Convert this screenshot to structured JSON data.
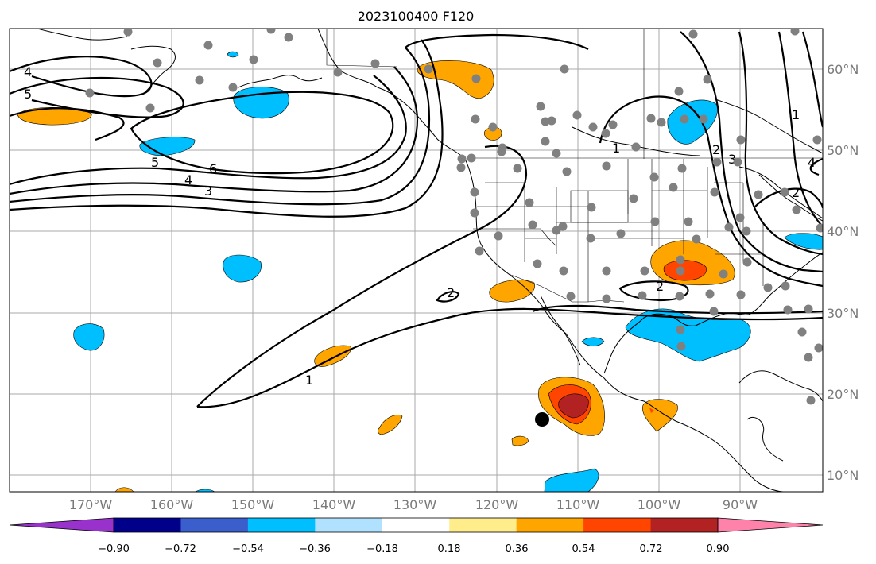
{
  "title": "2023100400 F120",
  "lon_ticks": [
    "170°W",
    "160°W",
    "150°W",
    "140°W",
    "130°W",
    "120°W",
    "110°W",
    "100°W",
    "90°W"
  ],
  "lat_ticks": [
    "60°N",
    "50°N",
    "40°N",
    "30°N",
    "20°N",
    "10°N"
  ],
  "colorbar": {
    "colors": [
      "#9932cc",
      "#00008b",
      "#3a5fcd",
      "#00bfff",
      "#b0e2ff",
      "#ffffff",
      "#ffec8b",
      "#ffa500",
      "#ff4500",
      "#b22222",
      "#ff82ab"
    ],
    "tick_labels": [
      "−0.90",
      "−0.72",
      "−0.54",
      "−0.36",
      "−0.18",
      "0.18",
      "0.36",
      "0.54",
      "0.72",
      "0.90"
    ]
  },
  "contour_labels": [
    "4",
    "5",
    "6",
    "5",
    "4",
    "3",
    "2",
    "1",
    "1",
    "2",
    "2",
    "3",
    "4",
    "1",
    "2"
  ],
  "station_marker_color": "#808080",
  "storm_marker_color": "#000000"
}
